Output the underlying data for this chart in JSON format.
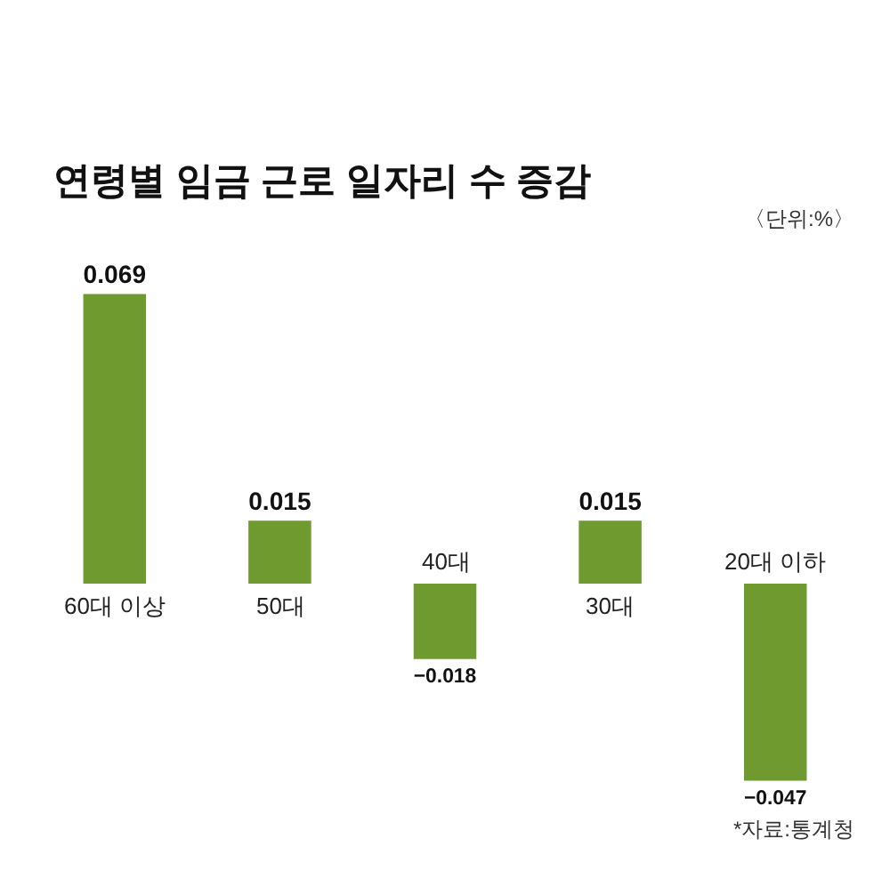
{
  "chart_data": {
    "type": "bar",
    "title": "연령별 임금 근로 일자리 수 증감",
    "categories": [
      "60대 이상",
      "50대",
      "40대",
      "30대",
      "20대 이하"
    ],
    "values": [
      0.069,
      0.015,
      -0.018,
      0.015,
      -0.047
    ],
    "value_labels": [
      "0.069",
      "0.015",
      "−0.018",
      "0.015",
      "−0.047"
    ],
    "color": "#6e9a2f",
    "annotations": [
      "〈단위:%〉",
      "*자료:통계청"
    ],
    "legend": false
  }
}
